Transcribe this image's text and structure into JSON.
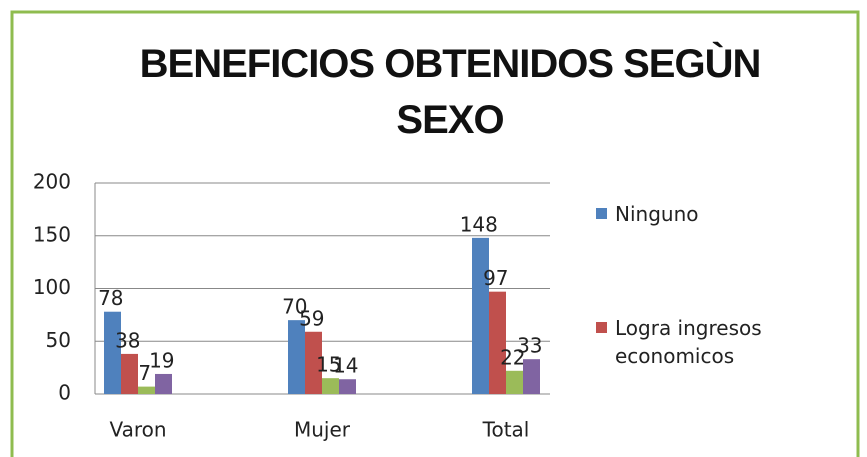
{
  "chart_data": {
    "type": "bar",
    "title": "BENEFICIOS OBTENIDOS SEGÙN SEXO",
    "categories": [
      "Varon",
      "Mujer",
      "Total"
    ],
    "series": [
      {
        "name": "Ninguno",
        "color": "#4f81bd",
        "values": [
          78,
          70,
          148
        ]
      },
      {
        "name": "Logra ingresos economicos",
        "color": "#c0504d",
        "values": [
          38,
          59,
          97
        ]
      },
      {
        "color": "#9bbb59",
        "values": [
          7,
          15,
          22
        ]
      },
      {
        "color": "#8064a2",
        "values": [
          19,
          14,
          33
        ]
      }
    ],
    "ylim": [
      0,
      200
    ],
    "yticks": [
      0,
      50,
      100,
      150,
      200
    ],
    "grid": true,
    "legend": "right"
  }
}
